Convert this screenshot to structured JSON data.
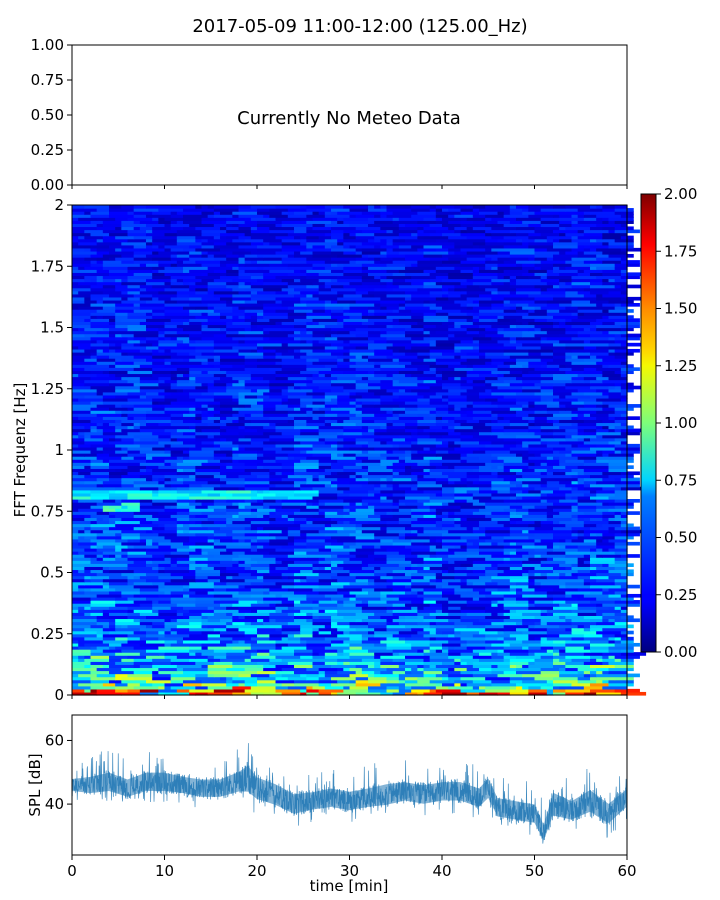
{
  "chart_data": [
    {
      "id": "meteo",
      "type": "line",
      "title": "2017-05-09 11:00-12:00 (125.00_Hz)",
      "message": "Currently No Meteo Data",
      "ylim": [
        0,
        1
      ],
      "xlim": [
        0,
        60
      ],
      "yticks": [
        "0.00",
        "0.25",
        "0.50",
        "0.75",
        "1.00"
      ],
      "series": []
    },
    {
      "id": "spectrogram",
      "type": "heatmap",
      "ylabel": "FFT Frequenz [Hz]",
      "xlim": [
        0,
        60
      ],
      "ylim": [
        0,
        2
      ],
      "yticks": [
        "0",
        "0.25",
        "0.5",
        "0.75",
        "1",
        "1.25",
        "1.5",
        "1.75",
        "2"
      ],
      "colormap": "jet",
      "clim": [
        0,
        2
      ],
      "colorbar_ticks": [
        "0.00",
        "0.25",
        "0.50",
        "0.75",
        "1.00",
        "1.25",
        "1.50",
        "1.75",
        "2.00"
      ],
      "trend": {
        "description_values_by_freq_hz": [
          [
            0.0,
            1.2
          ],
          [
            0.05,
            0.8
          ],
          [
            0.15,
            0.6
          ],
          [
            0.3,
            0.45
          ],
          [
            0.5,
            0.38
          ],
          [
            0.8,
            0.35
          ],
          [
            1.2,
            0.3
          ],
          [
            2.0,
            0.25
          ]
        ],
        "bands": [
          {
            "freq": 0.82,
            "x_range": [
              0,
              25
            ],
            "level": 0.75
          },
          {
            "freq": 0.77,
            "x_range": [
              3,
              6
            ],
            "level": 0.8
          }
        ]
      }
    },
    {
      "id": "spl",
      "type": "area",
      "ylabel": "SPL [dB]",
      "xlabel": "time [min]",
      "xlim": [
        0,
        60
      ],
      "ylim": [
        24,
        68
      ],
      "xticks": [
        "0",
        "10",
        "20",
        "30",
        "40",
        "50",
        "60"
      ],
      "yticks": [
        "40",
        "60"
      ],
      "color": "#1f77b4",
      "series": [
        {
          "x": [
            0,
            2,
            4,
            6,
            8,
            10,
            12,
            14,
            16,
            18,
            19,
            20,
            22,
            24,
            26,
            28,
            30,
            32,
            34,
            36,
            38,
            40,
            42,
            44,
            45,
            46,
            48,
            50,
            51,
            52,
            54,
            56,
            58,
            60
          ],
          "mid": [
            46,
            46,
            47,
            45,
            47,
            47,
            46,
            45,
            45,
            47,
            48,
            45,
            43,
            40,
            41,
            42,
            41,
            42,
            43,
            44,
            43,
            44,
            44,
            42,
            45,
            39,
            38,
            37,
            31,
            40,
            38,
            41,
            37,
            42
          ],
          "lo": [
            41,
            40,
            41,
            38,
            40,
            40,
            40,
            38,
            38,
            40,
            40,
            36,
            34,
            32,
            34,
            35,
            34,
            35,
            36,
            37,
            36,
            37,
            37,
            35,
            38,
            32,
            31,
            30,
            27,
            33,
            31,
            33,
            29,
            35
          ],
          "hi": [
            52,
            55,
            58,
            54,
            57,
            57,
            55,
            54,
            54,
            58,
            64,
            56,
            53,
            50,
            50,
            52,
            51,
            52,
            55,
            54,
            53,
            54,
            54,
            52,
            56,
            49,
            48,
            47,
            41,
            54,
            48,
            53,
            47,
            51
          ]
        }
      ]
    }
  ]
}
